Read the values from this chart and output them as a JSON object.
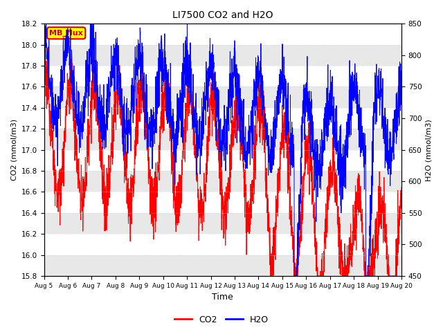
{
  "title": "LI7500 CO2 and H2O",
  "xlabel": "Time",
  "ylabel_left": "CO2 (mmol/m3)",
  "ylabel_right": "H2O (mmol/m3)",
  "co2_ylim": [
    15.8,
    18.2
  ],
  "h2o_ylim": [
    450,
    850
  ],
  "co2_yticks": [
    15.8,
    16.0,
    16.2,
    16.4,
    16.6,
    16.8,
    17.0,
    17.2,
    17.4,
    17.6,
    17.8,
    18.0,
    18.2
  ],
  "h2o_yticks": [
    450,
    500,
    550,
    600,
    650,
    700,
    750,
    800,
    850
  ],
  "xtick_labels": [
    "Aug 5",
    "Aug 6",
    "Aug 7",
    "Aug 8",
    "Aug 9",
    "Aug 10",
    "Aug 11",
    "Aug 12",
    "Aug 13",
    "Aug 14",
    "Aug 15",
    "Aug 16",
    "Aug 17",
    "Aug 18",
    "Aug 19",
    "Aug 20"
  ],
  "co2_color": "#FF0000",
  "h2o_color": "#0000FF",
  "legend_label_co2": "CO2",
  "legend_label_h2o": "H2O",
  "annotation_text": "MB_flux",
  "annotation_bg": "#FFFF00",
  "annotation_border": "#CC0000",
  "grid_color": "#D0D0D0",
  "background_color": "#FFFFFF",
  "plot_bg_color": "#FFFFFF",
  "alt_band_color": "#E8E8E8"
}
